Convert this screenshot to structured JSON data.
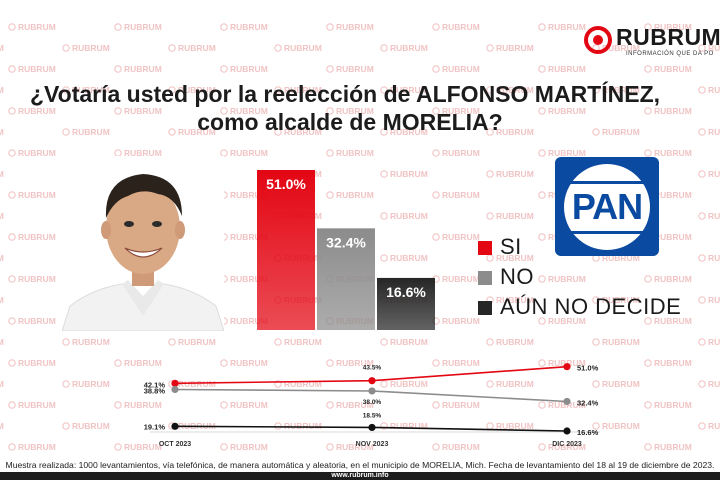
{
  "brand": {
    "name": "RUBRUM",
    "tagline": "INFORMACIÓN QUE DA PO",
    "watermark_text": "RUBRUM",
    "accent": "#e30613"
  },
  "title": {
    "line1": "¿Votaría usted por la reelección de ALFONSO MARTÍNEZ,",
    "line2": "como alcalde de MORELIA?"
  },
  "party_logo": {
    "text": "PAN",
    "color": "#0a4aa0"
  },
  "legend": [
    {
      "label": "SI",
      "color": "#e30613"
    },
    {
      "label": "NO",
      "color": "#8c8c8c"
    },
    {
      "label": "AÚN NO DECIDE",
      "color": "#262626"
    }
  ],
  "footnote": "Muestra realizada: 1000 levantamientos, vía telefónica, de manera automática y aleatoria, en el municipio de MORELIA, Mich. Fecha de levantamiento del 18 al 19 de diciembre de 2023.",
  "website": "www.rubrum.info",
  "chart_data": [
    {
      "type": "bar",
      "categories": [
        "SI",
        "NO",
        "AÚN NO DECIDE"
      ],
      "values": [
        51.0,
        32.4,
        16.6
      ],
      "value_labels": [
        "51.0%",
        "32.4%",
        "16.6%"
      ],
      "colors": [
        "#e30613",
        "#8c8c8c",
        "#262626"
      ],
      "ylim": [
        0,
        51
      ]
    },
    {
      "type": "line",
      "x": [
        "OCT 2023",
        "NOV 2023",
        "DIC 2023"
      ],
      "series": [
        {
          "name": "SI",
          "color": "#e30613",
          "values": [
            42.1,
            43.5,
            51.0
          ],
          "labels": [
            "42.1%",
            "43.5%",
            "51.0%"
          ]
        },
        {
          "name": "NO",
          "color": "#8c8c8c",
          "values": [
            38.8,
            38.0,
            32.4
          ],
          "labels": [
            "38.8%",
            "38.0%",
            "32.4%"
          ]
        },
        {
          "name": "AÚN NO DECIDE",
          "color": "#111111",
          "values": [
            19.1,
            18.5,
            16.6
          ],
          "labels": [
            "19.1%",
            "18.5%",
            "16.6%"
          ]
        }
      ]
    }
  ]
}
